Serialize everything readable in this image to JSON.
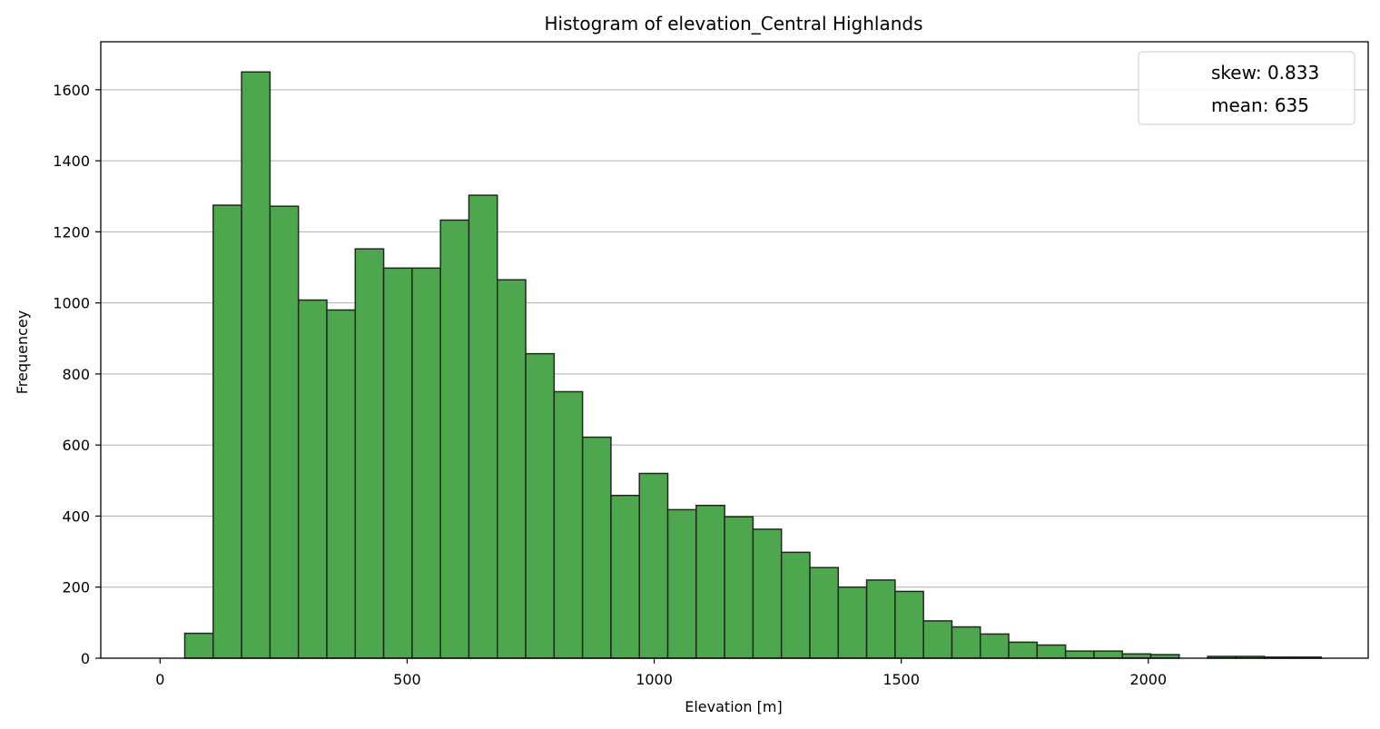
{
  "chart_data": {
    "type": "bar",
    "title": "Histogram of elevation_Central Highlands",
    "xlabel": "Elevation [m]",
    "ylabel": "Frequencey",
    "bin_start": 50,
    "bin_width": 57.5,
    "values": [
      70,
      1275,
      1650,
      1272,
      1008,
      980,
      1152,
      1098,
      1098,
      1233,
      1303,
      1065,
      857,
      750,
      622,
      458,
      520,
      418,
      430,
      398,
      363,
      298,
      255,
      200,
      220,
      188,
      105,
      88,
      68,
      45,
      37,
      20,
      20,
      12,
      10,
      0,
      5,
      5,
      3,
      3
    ],
    "xlim": [
      -120,
      2445
    ],
    "ylim": [
      0,
      1735
    ],
    "xticks": [
      0,
      500,
      1000,
      1500,
      2000
    ],
    "xtick_labels": [
      "0",
      "500",
      "1000",
      "1500",
      "2000"
    ],
    "yticks": [
      0,
      200,
      400,
      600,
      800,
      1000,
      1200,
      1400,
      1600
    ],
    "ytick_labels": [
      "0",
      "200",
      "400",
      "600",
      "800",
      "1000",
      "1200",
      "1400",
      "1600"
    ],
    "grid": "y",
    "legend_position": "top-right",
    "legend": [
      "skew: 0.833",
      "mean: 635"
    ],
    "bar_color": "#4ea64e",
    "edge_color": "#1f2a1f"
  }
}
